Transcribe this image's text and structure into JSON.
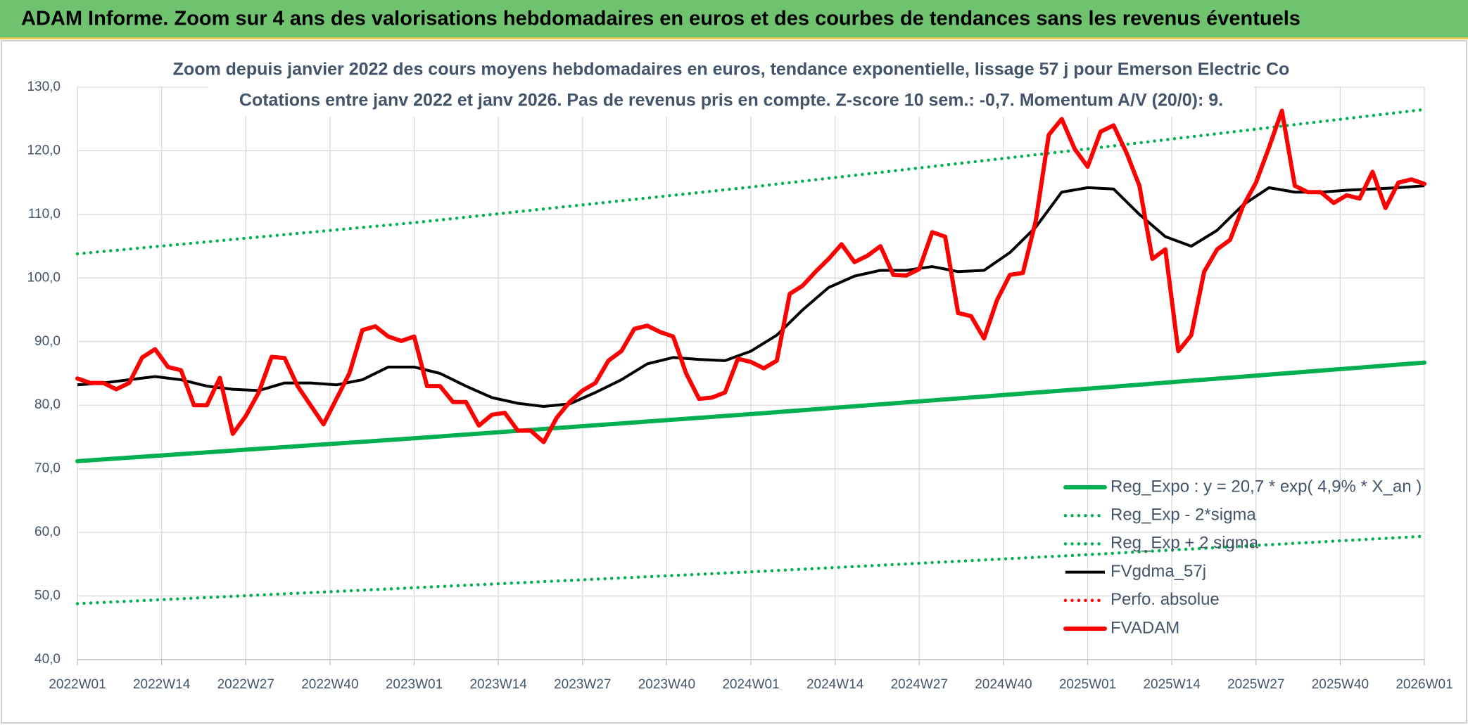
{
  "chart_data": {
    "type": "line",
    "header": "ADAM Informe. Zoom sur 4 ans des valorisations hebdomadaires en euros et des courbes de tendances sans les revenus éventuels",
    "title": "Zoom depuis janvier 2022 des cours moyens hebdomadaires en euros, tendance exponentielle, lissage 57 j pour Emerson Electric Co",
    "subtitle": "Cotations entre janv 2022 et janv 2026. Pas de revenus pris en compte. Z-score 10 sem.: -0,7. Momentum A/V (20/0): 9.",
    "xlim": [
      0,
      208
    ],
    "xticks": [
      {
        "value": 0,
        "label": "2022W01"
      },
      {
        "value": 13,
        "label": "2022W14"
      },
      {
        "value": 26,
        "label": "2022W27"
      },
      {
        "value": 39,
        "label": "2022W40"
      },
      {
        "value": 52,
        "label": "2023W01"
      },
      {
        "value": 65,
        "label": "2023W14"
      },
      {
        "value": 78,
        "label": "2023W27"
      },
      {
        "value": 91,
        "label": "2023W40"
      },
      {
        "value": 104,
        "label": "2024W01"
      },
      {
        "value": 117,
        "label": "2024W14"
      },
      {
        "value": 130,
        "label": "2024W27"
      },
      {
        "value": 143,
        "label": "2024W40"
      },
      {
        "value": 156,
        "label": "2025W01"
      },
      {
        "value": 169,
        "label": "2025W14"
      },
      {
        "value": 182,
        "label": "2025W27"
      },
      {
        "value": 195,
        "label": "2025W40"
      },
      {
        "value": 208,
        "label": "2026W01"
      }
    ],
    "ylim": [
      40,
      130
    ],
    "yticks": [
      {
        "value": 40,
        "label": "40,0"
      },
      {
        "value": 50,
        "label": "50,0"
      },
      {
        "value": 60,
        "label": "60,0"
      },
      {
        "value": 70,
        "label": "70,0"
      },
      {
        "value": 80,
        "label": "80,0"
      },
      {
        "value": 90,
        "label": "90,0"
      },
      {
        "value": 100,
        "label": "100,0"
      },
      {
        "value": 110,
        "label": "110,0"
      },
      {
        "value": 120,
        "label": "120,0"
      },
      {
        "value": 130,
        "label": "130,0"
      }
    ],
    "grid": true,
    "legend": "lower right",
    "series": [
      {
        "name": "Reg_Expo : y = 20,7 * exp( 4,9% *  X_an )",
        "color": "#00b050",
        "style": "thick",
        "x": [
          0,
          52,
          104,
          156,
          208
        ],
        "values": [
          71.2,
          74.8,
          78.6,
          82.6,
          86.7
        ]
      },
      {
        "name": "Reg_Exp - 2*sigma",
        "color": "#00b050",
        "style": "dotted",
        "x": [
          0,
          52,
          104,
          156,
          208
        ],
        "values": [
          48.8,
          51.3,
          53.8,
          56.5,
          59.4
        ]
      },
      {
        "name": "Reg_Exp + 2 sigma",
        "color": "#00b050",
        "style": "dotted",
        "x": [
          0,
          52,
          104,
          156,
          208
        ],
        "values": [
          103.8,
          108.7,
          114.3,
          120.3,
          126.5
        ]
      },
      {
        "name": "FVgdma_57j",
        "color": "#000000",
        "style": "solid",
        "x": [
          0,
          4,
          8,
          12,
          16,
          20,
          24,
          28,
          32,
          36,
          40,
          44,
          48,
          52,
          56,
          60,
          64,
          68,
          72,
          76,
          80,
          84,
          88,
          92,
          96,
          100,
          104,
          108,
          112,
          116,
          120,
          124,
          128,
          132,
          136,
          140,
          144,
          148,
          152,
          156,
          160,
          164,
          168,
          172,
          176,
          180,
          184,
          188,
          192,
          196,
          200,
          204,
          208
        ],
        "values": [
          83.2,
          83.5,
          84,
          84.5,
          84,
          83,
          82.5,
          82.3,
          83.5,
          83.5,
          83.2,
          84,
          86,
          86,
          85,
          83,
          81.2,
          80.3,
          79.8,
          80.2,
          82,
          84,
          86.5,
          87.5,
          87.2,
          87,
          88.5,
          91,
          95,
          98.5,
          100.3,
          101.2,
          101.2,
          101.8,
          101,
          101.2,
          104,
          108,
          113.5,
          114.2,
          114,
          110,
          106.5,
          105,
          107.5,
          111.5,
          114.2,
          113.5,
          113.5,
          113.8,
          114,
          114.2,
          114.5
        ]
      },
      {
        "name": "Perfo. absolue",
        "color": "#ff0000",
        "style": "dotted",
        "x": [],
        "values": []
      },
      {
        "name": "FVADAM",
        "color": "#ff0000",
        "style": "thick",
        "x": [
          0,
          2,
          4,
          6,
          8,
          10,
          12,
          14,
          16,
          18,
          20,
          22,
          24,
          26,
          28,
          30,
          32,
          34,
          36,
          38,
          40,
          42,
          44,
          46,
          48,
          50,
          52,
          54,
          56,
          58,
          60,
          62,
          64,
          66,
          68,
          70,
          72,
          74,
          76,
          78,
          80,
          82,
          84,
          86,
          88,
          90,
          92,
          94,
          96,
          98,
          100,
          102,
          104,
          106,
          108,
          110,
          112,
          114,
          116,
          118,
          120,
          122,
          124,
          126,
          128,
          130,
          132,
          134,
          136,
          138,
          140,
          142,
          144,
          146,
          148,
          150,
          152,
          154,
          156,
          158,
          160,
          162,
          164,
          166,
          168,
          170,
          172,
          174,
          176,
          178,
          180,
          182,
          184,
          186,
          188,
          190,
          192,
          194,
          196,
          198,
          200,
          202,
          204,
          206,
          208
        ],
        "values": [
          84.2,
          83.5,
          83.5,
          82.5,
          83.5,
          87.5,
          88.8,
          86,
          85.5,
          80,
          80,
          84.3,
          75.5,
          78.3,
          82,
          87.6,
          87.4,
          83,
          80,
          77,
          81,
          85,
          91.8,
          92.4,
          90.8,
          90.1,
          90.8,
          83,
          83,
          80.5,
          80.5,
          76.8,
          78.5,
          78.8,
          76,
          76,
          74.2,
          78,
          80.5,
          82.3,
          83.5,
          87,
          88.5,
          92,
          92.5,
          91.5,
          90.8,
          85,
          81,
          81.2,
          82,
          87.3,
          86.8,
          85.8,
          87,
          97.5,
          98.8,
          101,
          103,
          105.3,
          102.5,
          103.5,
          105,
          100.5,
          100.4,
          101.4,
          107.2,
          106.5,
          94.5,
          94,
          90.5,
          96.5,
          100.5,
          100.8,
          109,
          122.5,
          125,
          120.3,
          117.5,
          123,
          124,
          119.7,
          114.5,
          103,
          104.5,
          88.5,
          91,
          101,
          104.5,
          106,
          111.3,
          115,
          120.5,
          126.3,
          114.5,
          113.5,
          113.5,
          111.8,
          113,
          112.5,
          116.7,
          111,
          115,
          115.5,
          114.8
        ]
      }
    ]
  }
}
